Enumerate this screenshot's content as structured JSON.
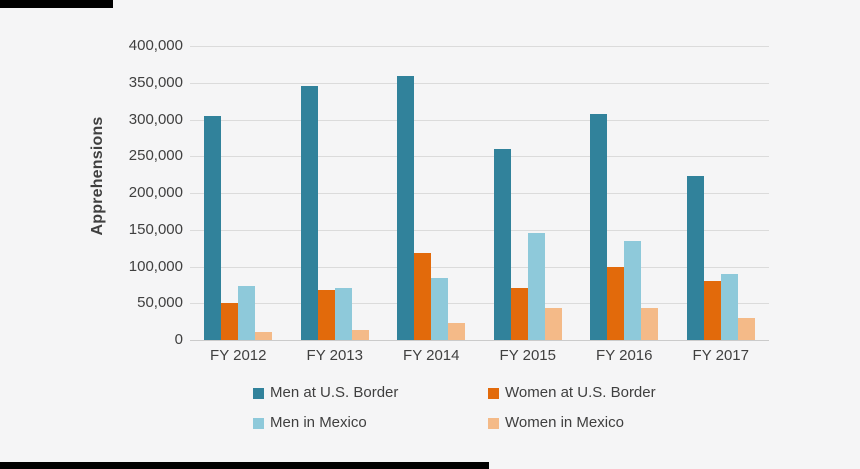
{
  "chart_data": {
    "type": "bar",
    "title": "",
    "xlabel": "",
    "ylabel": "Apprehensions",
    "categories": [
      "FY 2012",
      "FY 2013",
      "FY 2014",
      "FY 2015",
      "FY 2016",
      "FY 2017"
    ],
    "series": [
      {
        "name": "Men at U.S. Border",
        "color": "#31829B",
        "values": [
          305000,
          345000,
          359000,
          260000,
          307000,
          223000
        ]
      },
      {
        "name": "Women at U.S. Border",
        "color": "#E26A0B",
        "values": [
          50000,
          68000,
          119000,
          71000,
          100000,
          80000
        ]
      },
      {
        "name": "Men in Mexico",
        "color": "#8EC9DA",
        "values": [
          73000,
          71000,
          85000,
          146000,
          135000,
          90000
        ]
      },
      {
        "name": "Women in Mexico",
        "color": "#F4BA88",
        "values": [
          11000,
          13000,
          23000,
          44000,
          44000,
          30000
        ]
      }
    ],
    "ylim": [
      0,
      400000
    ],
    "ytick_interval": 50000,
    "ytick_labels": [
      "400,000",
      "350,000",
      "300,000",
      "250,000",
      "200,000",
      "150,000",
      "100,000",
      "50,000",
      "0"
    ],
    "grid": true,
    "legend_position": "bottom",
    "background_color": "#F5F5F6"
  }
}
